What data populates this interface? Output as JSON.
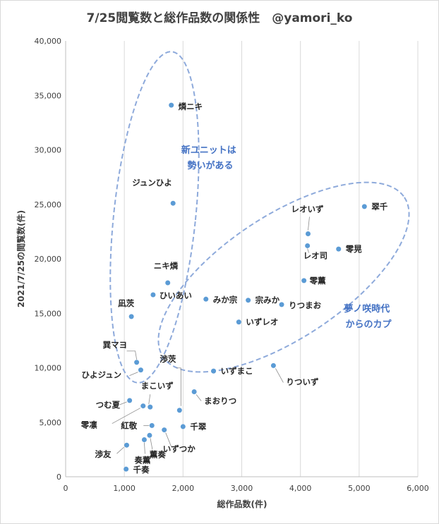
{
  "chart_data": {
    "type": "scatter",
    "title": "7/25閲覧数と総作品数の関係性　@yamori_ko",
    "xlabel": "総作品数(件)",
    "ylabel": "2021/7/25の閲覧数(件)",
    "xlim": [
      0,
      6000
    ],
    "ylim": [
      0,
      40000
    ],
    "xticks": [
      "0",
      "1,000",
      "2,000",
      "3,000",
      "4,000",
      "5,000",
      "6,000"
    ],
    "yticks": [
      "0",
      "5,000",
      "10,000",
      "15,000",
      "20,000",
      "25,000",
      "30,000",
      "35,000",
      "40,000"
    ],
    "grid": "vertical",
    "points": [
      {
        "label": "燐ニキ",
        "x": 1800,
        "y": 34100
      },
      {
        "label": "ジュンひよ",
        "x": 1830,
        "y": 25100
      },
      {
        "label": "ニキ燐",
        "x": 1740,
        "y": 17800
      },
      {
        "label": "ひいあい",
        "x": 1490,
        "y": 16700
      },
      {
        "label": "凪茨",
        "x": 1120,
        "y": 14700
      },
      {
        "label": "巽マヨ",
        "x": 1210,
        "y": 10500
      },
      {
        "label": "ひよジュン",
        "x": 1280,
        "y": 9800
      },
      {
        "label": "渉茨",
        "x": 1940,
        "y": 6100
      },
      {
        "label": "まこいず",
        "x": 1440,
        "y": 6400
      },
      {
        "label": "つむ夏",
        "x": 1090,
        "y": 7000
      },
      {
        "label": "零凛",
        "x": 1320,
        "y": 6500
      },
      {
        "label": "紅敬",
        "x": 1470,
        "y": 4700
      },
      {
        "label": "千翠",
        "x": 2000,
        "y": 4600
      },
      {
        "label": "いずつか",
        "x": 1680,
        "y": 4300
      },
      {
        "label": "薫奏",
        "x": 1430,
        "y": 3800
      },
      {
        "label": "奏薫",
        "x": 1340,
        "y": 3400
      },
      {
        "label": "渉友",
        "x": 1040,
        "y": 2900
      },
      {
        "label": "千奏",
        "x": 1030,
        "y": 700
      },
      {
        "label": "みか宗",
        "x": 2390,
        "y": 16300
      },
      {
        "label": "宗みか",
        "x": 3110,
        "y": 16200
      },
      {
        "label": "りつまお",
        "x": 3680,
        "y": 15800
      },
      {
        "label": "いずレオ",
        "x": 2950,
        "y": 14200
      },
      {
        "label": "いずまこ",
        "x": 2520,
        "y": 9700
      },
      {
        "label": "まおりつ",
        "x": 2190,
        "y": 7800
      },
      {
        "label": "りついず",
        "x": 3540,
        "y": 10200
      },
      {
        "label": "零薫",
        "x": 4060,
        "y": 18000
      },
      {
        "label": "レオいず",
        "x": 4130,
        "y": 22300
      },
      {
        "label": "レオ司",
        "x": 4120,
        "y": 21200
      },
      {
        "label": "零晃",
        "x": 4650,
        "y": 20900
      },
      {
        "label": "翠千",
        "x": 5090,
        "y": 24800
      }
    ],
    "annotations": [
      {
        "text": [
          "新ユニットは",
          "勢いがある"
        ]
      },
      {
        "text": [
          "夢ノ咲時代",
          "からのカプ"
        ]
      }
    ]
  }
}
